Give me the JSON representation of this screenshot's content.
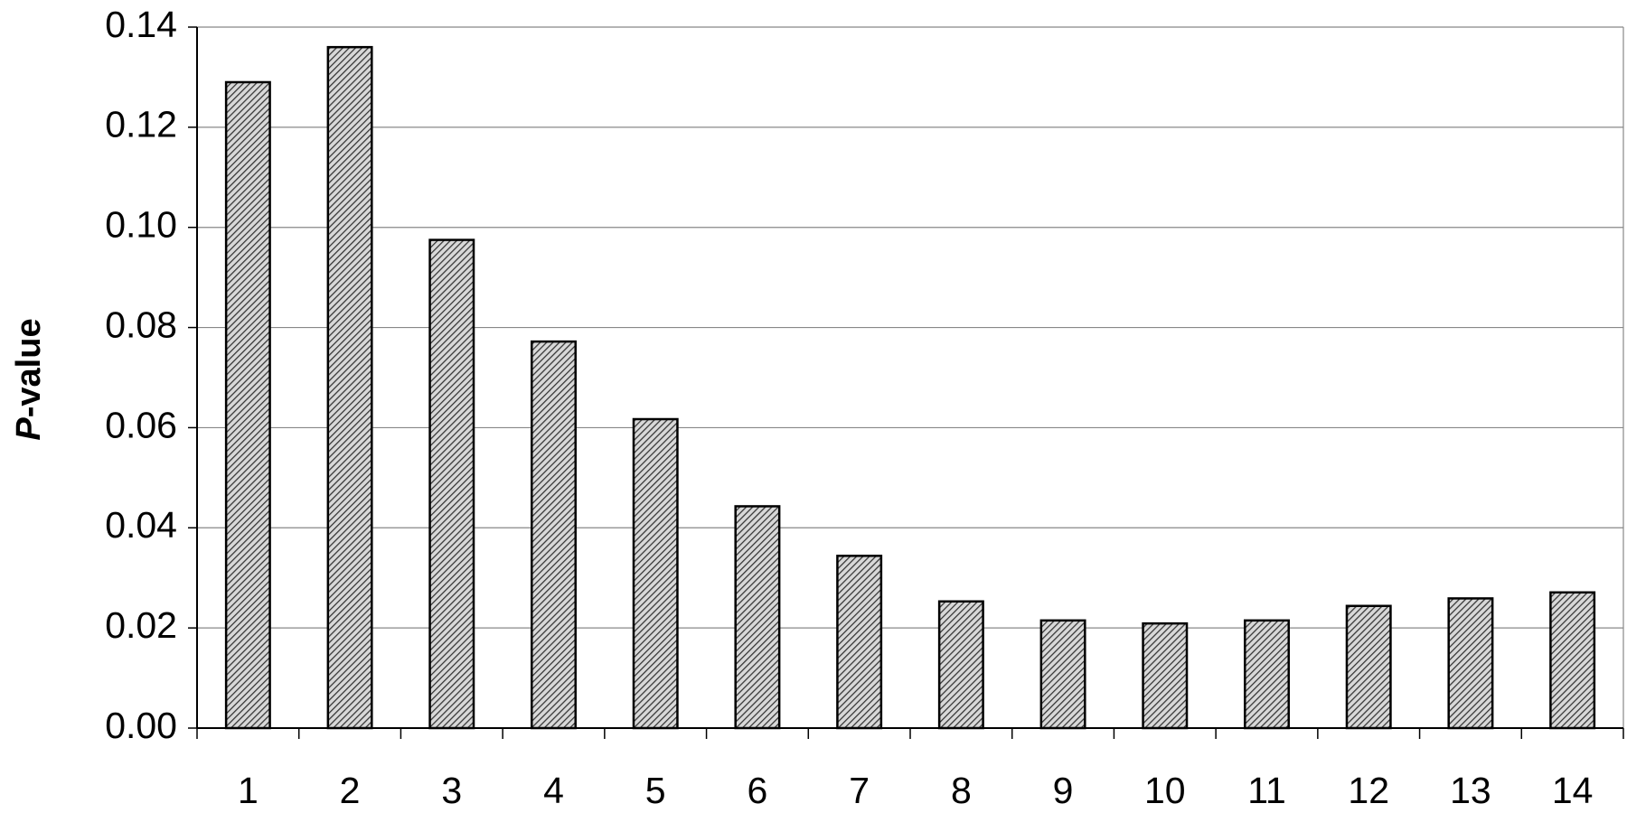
{
  "chart_data": {
    "type": "bar",
    "y_label": "P-value",
    "categories": [
      "1",
      "2",
      "3",
      "4",
      "5",
      "6",
      "7",
      "8",
      "9",
      "10",
      "11",
      "12",
      "13",
      "14"
    ],
    "values": [
      0.129,
      0.136,
      0.0975,
      0.0772,
      0.0617,
      0.0443,
      0.0344,
      0.0253,
      0.0215,
      0.0209,
      0.0215,
      0.0244,
      0.0259,
      0.0271
    ],
    "color": "#555555",
    "ylim": [
      0,
      0.14
    ],
    "yticks": [
      {
        "value": 0,
        "label": "0.00"
      },
      0.02,
      0.04,
      0.06,
      0.08,
      {
        "value": 0.1,
        "label": "0.10"
      },
      0.12,
      0.14
    ],
    "grid": true
  }
}
